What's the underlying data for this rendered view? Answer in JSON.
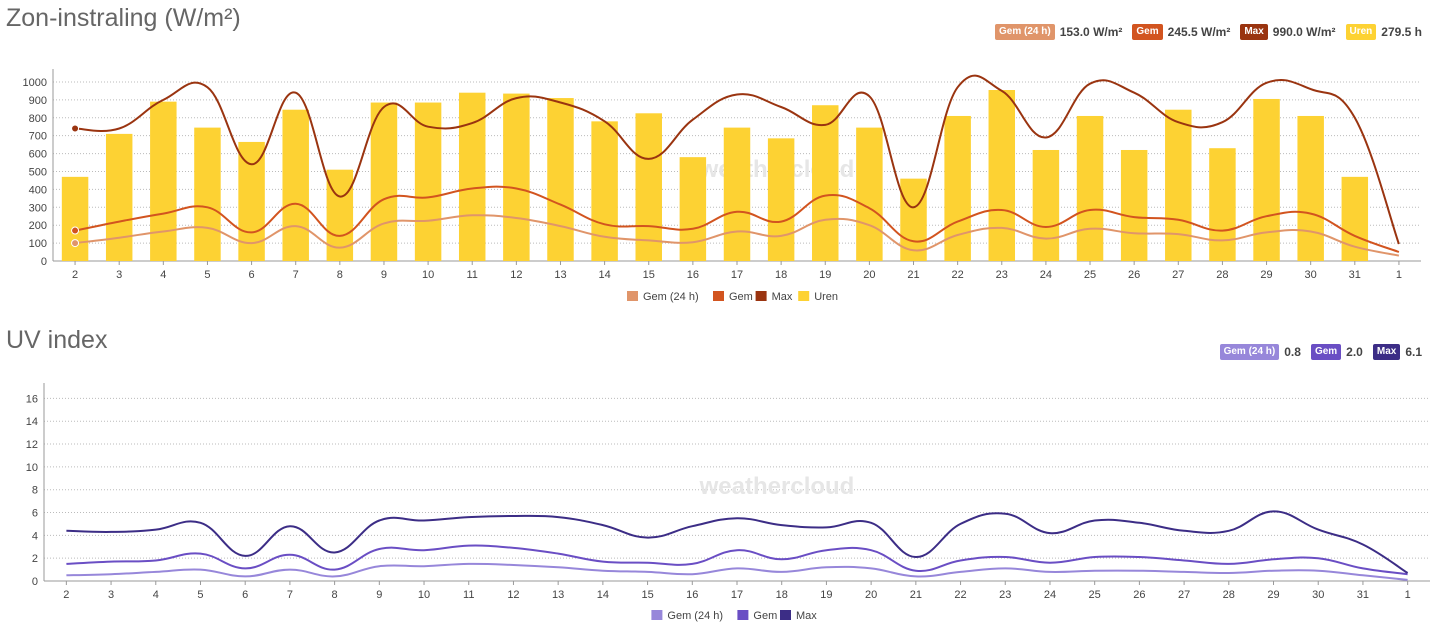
{
  "solar": {
    "title": "Zon-instraling (W/m²)",
    "stats": [
      {
        "label": "Gem (24 h)",
        "value": "153.0 W/m²",
        "color": "#e0956a"
      },
      {
        "label": "Gem",
        "value": "245.5 W/m²",
        "color": "#d2541f"
      },
      {
        "label": "Max",
        "value": "990.0 W/m²",
        "color": "#9a3410"
      },
      {
        "label": "Uren",
        "value": "279.5 h",
        "color": "#fdd233"
      }
    ]
  },
  "uv": {
    "title": "UV index",
    "stats": [
      {
        "label": "Gem (24 h)",
        "value": "0.8",
        "color": "#9787da"
      },
      {
        "label": "Gem",
        "value": "2.0",
        "color": "#6a4ec4"
      },
      {
        "label": "Max",
        "value": "6.1",
        "color": "#3c2d86"
      }
    ]
  },
  "watermark": "weathercloud",
  "chart_data": [
    {
      "type": "bar",
      "title": "Zon-instraling (W/m²)",
      "categories": [
        "2",
        "3",
        "4",
        "5",
        "6",
        "7",
        "8",
        "9",
        "10",
        "11",
        "12",
        "13",
        "14",
        "15",
        "16",
        "17",
        "18",
        "19",
        "20",
        "21",
        "22",
        "23",
        "24",
        "25",
        "26",
        "27",
        "28",
        "29",
        "30",
        "31",
        "1"
      ],
      "ylim": [
        0,
        1050
      ],
      "yticks": [
        0,
        100,
        200,
        300,
        400,
        500,
        600,
        700,
        800,
        900,
        1000
      ],
      "grid": true,
      "legend_position": "bottom",
      "series": [
        {
          "name": "Gem (24 h)",
          "type": "line",
          "color": "#e0956a",
          "values": [
            100,
            130,
            165,
            185,
            100,
            195,
            75,
            210,
            225,
            255,
            240,
            195,
            135,
            115,
            105,
            165,
            140,
            230,
            200,
            60,
            145,
            185,
            125,
            180,
            155,
            150,
            115,
            160,
            165,
            80,
            30
          ]
        },
        {
          "name": "Gem",
          "type": "line",
          "color": "#d2541f",
          "values": [
            170,
            220,
            265,
            300,
            160,
            320,
            140,
            345,
            355,
            405,
            405,
            315,
            205,
            195,
            180,
            275,
            220,
            365,
            295,
            110,
            220,
            285,
            190,
            285,
            245,
            230,
            170,
            250,
            265,
            140,
            50
          ]
        },
        {
          "name": "Max",
          "type": "line",
          "color": "#9a3410",
          "values": [
            740,
            740,
            900,
            970,
            540,
            940,
            360,
            860,
            750,
            770,
            910,
            885,
            780,
            570,
            790,
            930,
            860,
            760,
            920,
            300,
            970,
            950,
            690,
            990,
            940,
            775,
            775,
            995,
            960,
            800,
            95
          ]
        },
        {
          "name": "Uren",
          "type": "bar",
          "color": "#fdd233",
          "values": [
            470,
            710,
            890,
            745,
            665,
            845,
            510,
            885,
            885,
            940,
            935,
            910,
            780,
            825,
            580,
            745,
            685,
            870,
            745,
            460,
            810,
            955,
            620,
            810,
            620,
            845,
            630,
            905,
            810,
            470,
            0
          ]
        }
      ]
    },
    {
      "type": "line",
      "title": "UV index",
      "categories": [
        "2",
        "3",
        "4",
        "5",
        "6",
        "7",
        "8",
        "9",
        "10",
        "11",
        "12",
        "13",
        "14",
        "15",
        "16",
        "17",
        "18",
        "19",
        "20",
        "21",
        "22",
        "23",
        "24",
        "25",
        "26",
        "27",
        "28",
        "29",
        "30",
        "31",
        "1"
      ],
      "ylim": [
        0,
        17
      ],
      "yticks": [
        0,
        2,
        4,
        6,
        8,
        10,
        12,
        14,
        16
      ],
      "grid": true,
      "legend_position": "bottom",
      "series": [
        {
          "name": "Gem (24 h)",
          "color": "#9787da",
          "values": [
            0.5,
            0.6,
            0.8,
            1.0,
            0.4,
            1.0,
            0.4,
            1.3,
            1.3,
            1.5,
            1.4,
            1.2,
            0.9,
            0.8,
            0.6,
            1.1,
            0.8,
            1.2,
            1.1,
            0.4,
            0.8,
            1.1,
            0.8,
            0.9,
            0.9,
            0.8,
            0.7,
            0.9,
            0.9,
            0.5,
            0.1
          ]
        },
        {
          "name": "Gem",
          "color": "#6a4ec4",
          "values": [
            1.5,
            1.7,
            1.8,
            2.4,
            1.1,
            2.3,
            1.0,
            2.8,
            2.7,
            3.1,
            2.9,
            2.4,
            1.7,
            1.6,
            1.5,
            2.7,
            1.9,
            2.7,
            2.7,
            0.9,
            1.8,
            2.1,
            1.6,
            2.1,
            2.1,
            1.8,
            1.5,
            1.9,
            2.0,
            1.1,
            0.6
          ]
        },
        {
          "name": "Max",
          "color": "#3c2d86",
          "values": [
            4.4,
            4.3,
            4.5,
            5.1,
            2.2,
            4.8,
            2.5,
            5.3,
            5.3,
            5.6,
            5.7,
            5.6,
            4.9,
            3.8,
            4.8,
            5.5,
            4.9,
            4.7,
            5.1,
            2.1,
            5.0,
            5.9,
            4.2,
            5.3,
            5.1,
            4.4,
            4.4,
            6.1,
            4.5,
            3.2,
            0.7
          ]
        }
      ]
    }
  ]
}
